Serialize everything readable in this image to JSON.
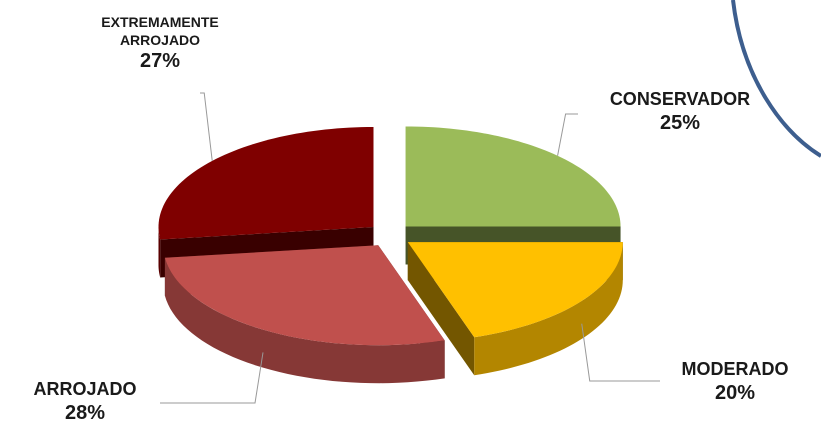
{
  "chart_data": {
    "type": "pie",
    "categories": [
      "CONSERVADOR",
      "MODERADO",
      "ARROJADO",
      "EXTREMAMENTE ARROJADO"
    ],
    "values": [
      25,
      20,
      28,
      27
    ],
    "value_labels": [
      "25%",
      "20%",
      "28%",
      "27%"
    ],
    "colors": [
      "#9bbb59",
      "#ffc000",
      "#c0504d",
      "#7f0000"
    ]
  }
}
